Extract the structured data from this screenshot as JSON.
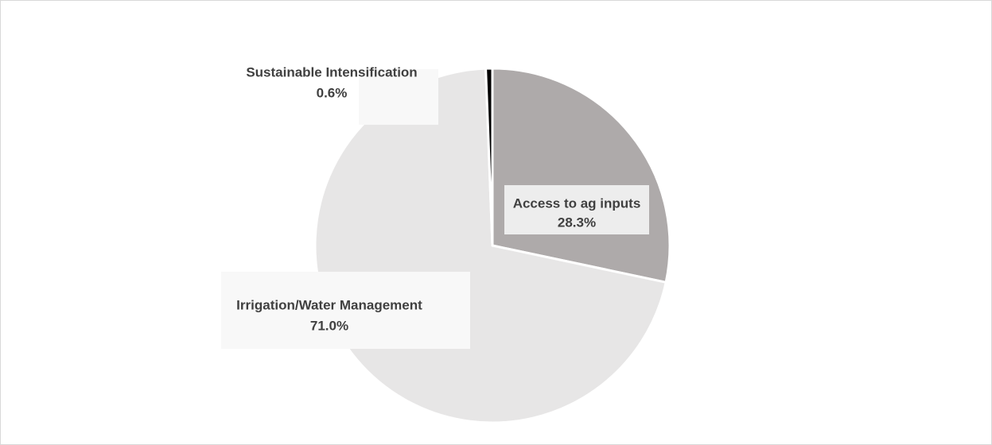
{
  "chart_data": {
    "type": "pie",
    "categories": [
      "Access to ag inputs",
      "Irrigation/Water Management",
      "Sustainable Intensification"
    ],
    "values": [
      28.3,
      71.0,
      0.6
    ],
    "value_labels": [
      "28.3%",
      "71.0%",
      "0.6%"
    ],
    "colors": [
      "#aeaaaa",
      "#e7e6e6",
      "#000000"
    ],
    "label_box_colors": [
      "#ededed",
      "#f8f8f8",
      "#f8f8f8"
    ],
    "title": "",
    "start_angle_deg": 0,
    "direction": "clockwise",
    "data_labels": true,
    "legend": "none"
  }
}
